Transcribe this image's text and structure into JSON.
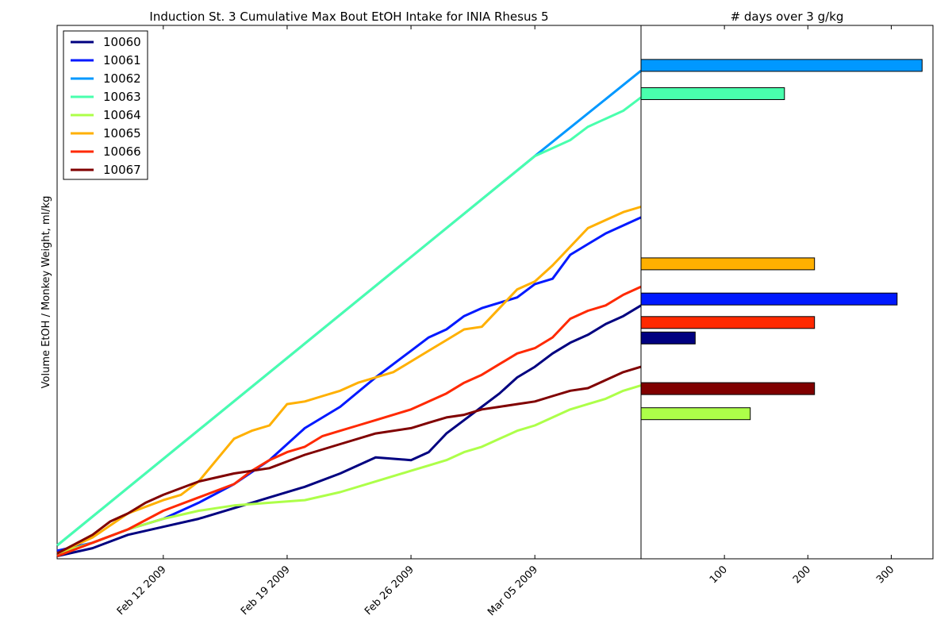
{
  "chart_data": [
    {
      "type": "line",
      "title": "Induction St. 3 Cumulative Max Bout EtOH Intake for INIA Rhesus 5",
      "xlabel": "",
      "ylabel": "Volume EtOH / Monkey Weight, ml/kg",
      "x_tick_labels": [
        "Feb 12 2009",
        "Feb 19 2009",
        "Feb 26 2009",
        "Mar 05 2009"
      ],
      "x_tick_days": [
        6,
        13,
        20,
        27
      ],
      "xlim_days": [
        0,
        33
      ],
      "ylim": [
        0,
        100
      ],
      "y_ticks_shown": false,
      "grid": false,
      "legend": "top-left",
      "series": [
        {
          "name": "10060",
          "color": "#000080",
          "x": [
            0,
            2,
            4,
            6,
            8,
            10,
            12,
            14,
            16,
            18,
            20,
            21,
            22,
            23,
            24,
            25,
            26,
            27,
            28,
            29,
            30,
            31,
            32,
            33
          ],
          "y": [
            0.5,
            2,
            4.5,
            6,
            7.5,
            9.5,
            11.5,
            13.5,
            16,
            19,
            18.5,
            20,
            23.5,
            26,
            28.5,
            31,
            34,
            36,
            38.5,
            40.5,
            42,
            44,
            45.5,
            47.5
          ]
        },
        {
          "name": "10061",
          "color": "#0019FF",
          "x": [
            0,
            2,
            4,
            6,
            8,
            10,
            12,
            14,
            16,
            18,
            19,
            20,
            21,
            22,
            23,
            24,
            25,
            26,
            27,
            28,
            29,
            30,
            31,
            32,
            33
          ],
          "y": [
            1.5,
            3,
            5.5,
            7.5,
            10.5,
            14,
            18.5,
            24.5,
            28.5,
            34,
            36.5,
            39,
            41.5,
            43,
            45.5,
            47,
            48,
            49,
            51.5,
            52.5,
            57,
            59,
            61,
            62.5,
            64
          ]
        },
        {
          "name": "10062",
          "color": "#0098FF",
          "x": [
            0,
            27,
            33
          ],
          "y": [
            2.5,
            75.5,
            91.5
          ]
        },
        {
          "name": "10063",
          "color": "#49FFAD",
          "x": [
            0,
            27,
            28,
            29,
            30,
            31,
            32,
            33
          ],
          "y": [
            2.5,
            75.5,
            77,
            78.5,
            81,
            82.5,
            84,
            86.5
          ]
        },
        {
          "name": "10064",
          "color": "#ADFF49",
          "x": [
            0,
            2,
            4,
            6,
            8,
            10,
            12,
            14,
            16,
            18,
            20,
            21,
            22,
            23,
            24,
            25,
            26,
            27,
            28,
            29,
            30,
            31,
            32,
            33
          ],
          "y": [
            1,
            3,
            5.5,
            7.5,
            9,
            10,
            10.5,
            11,
            12.5,
            14.5,
            16.5,
            17.5,
            18.5,
            20,
            21,
            22.5,
            24,
            25,
            26.5,
            28,
            29,
            30,
            31.5,
            32.5
          ]
        },
        {
          "name": "10065",
          "color": "#FFB000",
          "x": [
            0,
            2,
            4,
            6,
            7,
            8,
            9,
            10,
            11,
            12,
            13,
            14,
            15,
            16,
            17,
            18,
            19,
            20,
            21,
            22,
            23,
            24,
            25,
            26,
            27,
            28,
            29,
            30,
            31,
            32,
            33
          ],
          "y": [
            1,
            4,
            8.5,
            11,
            12,
            14.5,
            18.5,
            22.5,
            24,
            25,
            29,
            29.5,
            30.5,
            31.5,
            33,
            34,
            35,
            37,
            39,
            41,
            43,
            43.5,
            47,
            50.5,
            52,
            55,
            58.5,
            62,
            63.5,
            65,
            66
          ]
        },
        {
          "name": "10066",
          "color": "#FF2900",
          "x": [
            0,
            2,
            4,
            6,
            8,
            10,
            11,
            12,
            13,
            14,
            15,
            16,
            17,
            18,
            19,
            20,
            21,
            22,
            23,
            24,
            25,
            26,
            27,
            28,
            29,
            30,
            31,
            32,
            33
          ],
          "y": [
            0.5,
            3,
            5.5,
            9,
            11.5,
            14,
            16.5,
            18.5,
            20,
            21,
            23,
            24,
            25,
            26,
            27,
            28,
            29.5,
            31,
            33,
            34.5,
            36.5,
            38.5,
            39.5,
            41.5,
            45,
            46.5,
            47.5,
            49.5,
            51
          ]
        },
        {
          "name": "10067",
          "color": "#800000",
          "x": [
            0,
            2,
            3,
            4,
            5,
            6,
            8,
            10,
            12,
            14,
            16,
            18,
            20,
            21,
            22,
            23,
            24,
            25,
            26,
            27,
            28,
            29,
            30,
            31,
            32,
            33
          ],
          "y": [
            1,
            4.5,
            7,
            8.5,
            10.5,
            12,
            14.5,
            16,
            17,
            19.5,
            21.5,
            23.5,
            24.5,
            25.5,
            26.5,
            27,
            28,
            28.5,
            29,
            29.5,
            30.5,
            31.5,
            32,
            33.5,
            35,
            36
          ]
        }
      ]
    },
    {
      "type": "bar",
      "orientation": "horizontal",
      "title": "# days over 3 g/kg",
      "xlabel": "",
      "ylabel": "",
      "x_tick_labels": [
        "100",
        "200",
        "300"
      ],
      "x_ticks": [
        100,
        200,
        300
      ],
      "xlim": [
        0,
        350
      ],
      "bars": [
        {
          "name": "10062",
          "value": 337,
          "level": 92.5,
          "color": "#0098FF"
        },
        {
          "name": "10063",
          "value": 172,
          "level": 87.2,
          "color": "#49FFAD"
        },
        {
          "name": "10065",
          "value": 208,
          "level": 55.3,
          "color": "#FFB000"
        },
        {
          "name": "10061",
          "value": 307,
          "level": 48.7,
          "color": "#0019FF"
        },
        {
          "name": "10066",
          "value": 208,
          "level": 44.3,
          "color": "#FF2900"
        },
        {
          "name": "10060",
          "value": 65,
          "level": 41.4,
          "color": "#000080"
        },
        {
          "name": "10067",
          "value": 208,
          "level": 31.9,
          "color": "#800000"
        },
        {
          "name": "10064",
          "value": 131,
          "level": 27.2,
          "color": "#ADFF49"
        }
      ]
    }
  ]
}
